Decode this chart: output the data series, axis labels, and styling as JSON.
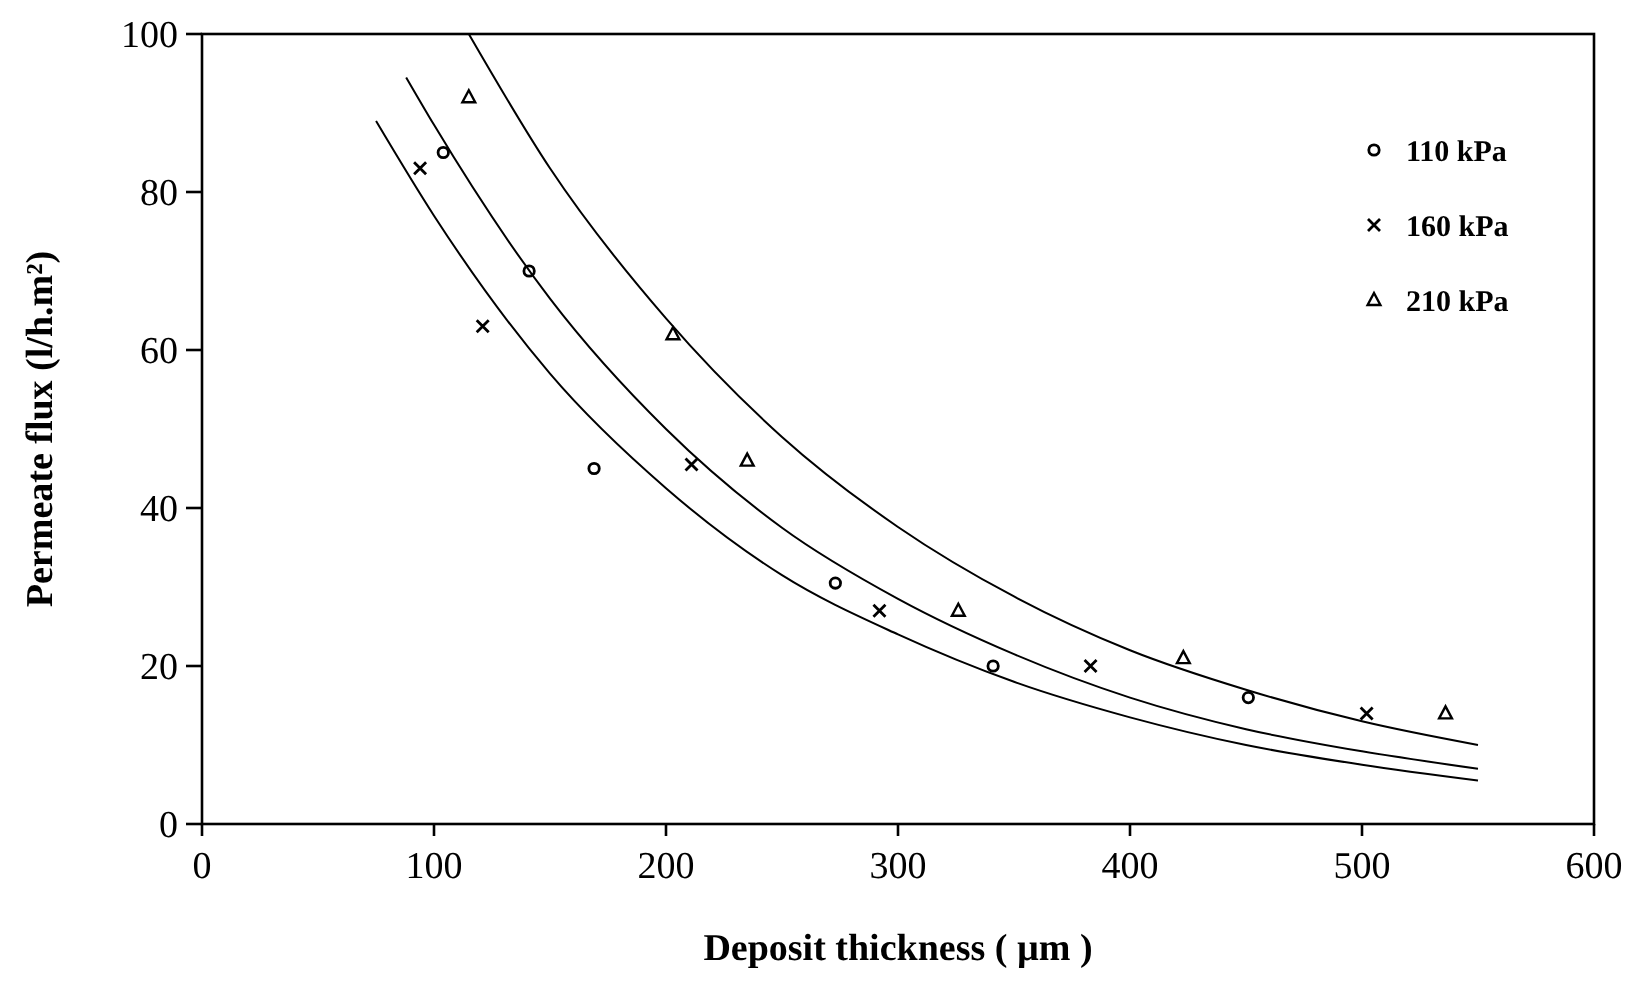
{
  "chart_data": {
    "type": "scatter",
    "xlabel": "Deposit thickness ( µm )",
    "ylabel": "Permeate flux (l/h.m²)",
    "xlim": [
      0,
      600
    ],
    "xticks": [
      0,
      100,
      200,
      300,
      400,
      500,
      600
    ],
    "ylim": [
      0,
      100
    ],
    "yticks": [
      0,
      20,
      40,
      60,
      80,
      100
    ],
    "grid": false,
    "legend": "top right",
    "series": [
      {
        "name": "110 kPa",
        "color": "#000000",
        "marker": "circle",
        "x": [
          104,
          141,
          169,
          273,
          341,
          451
        ],
        "values": [
          85,
          70,
          45,
          30.5,
          20,
          16
        ]
      },
      {
        "name": "160 kPa",
        "color": "#000000",
        "marker": "cross",
        "x": [
          94,
          121,
          211,
          292,
          383,
          502
        ],
        "values": [
          83,
          63,
          45.5,
          27,
          20,
          14
        ]
      },
      {
        "name": "210 kPa",
        "color": "#000000",
        "marker": "triangle",
        "x": [
          115,
          203,
          235,
          326,
          423,
          536
        ],
        "values": [
          92,
          62,
          46,
          27,
          21,
          14
        ]
      },
      {
        "type": "line",
        "color": "#000000",
        "marker": "none",
        "x": [
          75,
          100,
          150,
          200,
          250,
          300,
          350,
          400,
          450,
          500,
          550
        ],
        "values": [
          89,
          77,
          57,
          42.5,
          31.5,
          24,
          18,
          13.5,
          10,
          7.5,
          5.5
        ]
      },
      {
        "type": "line",
        "color": "#000000",
        "marker": "none",
        "x": [
          88,
          100,
          150,
          200,
          250,
          300,
          350,
          400,
          450,
          500,
          550
        ],
        "values": [
          94.5,
          88.5,
          66.5,
          50,
          37.5,
          28.5,
          21.5,
          16,
          12,
          9.2,
          7
        ]
      },
      {
        "type": "line",
        "color": "#000000",
        "marker": "none",
        "x": [
          115,
          150,
          200,
          250,
          300,
          350,
          400,
          450,
          500,
          550
        ],
        "values": [
          100,
          83,
          64,
          49,
          37.6,
          28.8,
          22,
          17,
          13,
          10
        ]
      }
    ]
  }
}
